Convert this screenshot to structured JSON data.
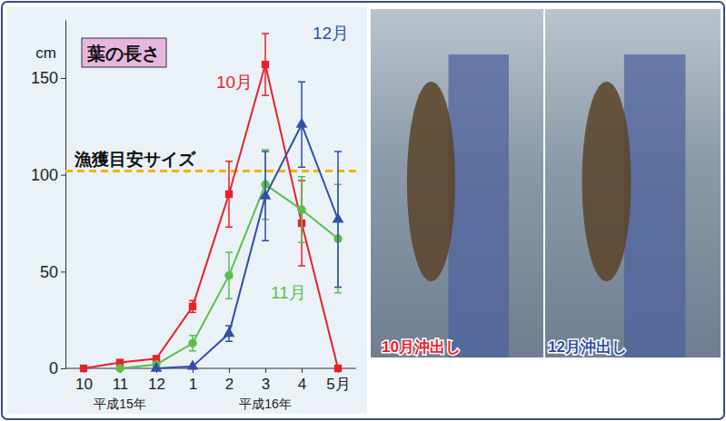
{
  "chart_data": {
    "type": "line",
    "title": "葉の長さ",
    "y_label": "cm",
    "categories": [
      "10",
      "11",
      "12",
      "1",
      "2",
      "3",
      "4",
      "5月"
    ],
    "x_groups": [
      {
        "label": "平成15年",
        "categories": [
          "10",
          "11",
          "12"
        ]
      },
      {
        "label": "平成16年",
        "categories": [
          "1",
          "2",
          "3",
          "4",
          "5月"
        ]
      }
    ],
    "series": [
      {
        "name": "10月",
        "color": "#e8202a",
        "marker": "square",
        "values": [
          0,
          3,
          5,
          32,
          90,
          157,
          75,
          0
        ],
        "errors": [
          null,
          null,
          null,
          3,
          17,
          16,
          22,
          null
        ]
      },
      {
        "name": "11月",
        "color": "#5cbf4a",
        "marker": "circle",
        "values": [
          null,
          0,
          2,
          13,
          48,
          95,
          82,
          67
        ],
        "errors": [
          null,
          null,
          null,
          4,
          12,
          18,
          17,
          28
        ]
      },
      {
        "name": "12月",
        "color": "#2f4fa8",
        "marker": "triangle",
        "values": [
          null,
          null,
          0,
          1,
          18,
          89,
          126,
          77
        ],
        "errors": [
          null,
          null,
          null,
          null,
          4,
          23,
          22,
          35
        ]
      }
    ],
    "ylim": [
      0,
      180
    ],
    "yticks": [
      0,
      50,
      100,
      150
    ],
    "grid": false,
    "reference_line": {
      "value": 102,
      "label": "漁獲目安サイズ",
      "color": "#f0b400",
      "line_style": "dashed"
    }
  },
  "photos": [
    {
      "caption": "10月沖出し",
      "color": "#e8202a"
    },
    {
      "caption": "12月沖出し",
      "color": "#2f4fa8"
    }
  ]
}
